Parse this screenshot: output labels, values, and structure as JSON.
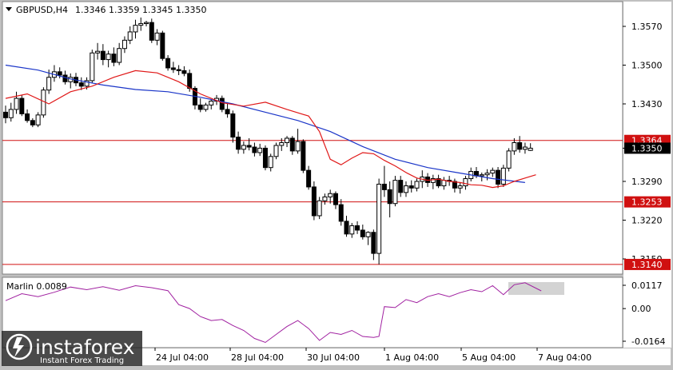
{
  "chart_data": {
    "type": "candlestick",
    "symbol": "GBPUSD,H4",
    "ohlc_header": "1.3346 1.3359 1.3345 1.3350",
    "price_axis": {
      "ticks": [
        "1.3570",
        "1.3500",
        "1.3430",
        "1.3350",
        "1.3290",
        "1.3220",
        "1.3150"
      ],
      "range": [
        1.3125,
        1.3605
      ]
    },
    "current_price": "1.3350",
    "levels": [
      {
        "value": 1.3364,
        "label": "1.3364"
      },
      {
        "value": 1.3253,
        "label": "1.3253"
      },
      {
        "value": 1.314,
        "label": "1.3140"
      }
    ],
    "time_axis": [
      "24 Jul 04:00",
      "28 Jul 04:00",
      "30 Jul 04:00",
      "1 Aug 04:00",
      "5 Aug 04:00",
      "7 Aug 04:00"
    ],
    "candles": [
      [
        1.3415,
        1.3427,
        1.3395,
        1.3405
      ],
      [
        1.3405,
        1.3432,
        1.3398,
        1.342
      ],
      [
        1.342,
        1.3452,
        1.3412,
        1.344
      ],
      [
        1.344,
        1.3446,
        1.3408,
        1.3412
      ],
      [
        1.3412,
        1.342,
        1.3396,
        1.34
      ],
      [
        1.34,
        1.3404,
        1.3388,
        1.3392
      ],
      [
        1.3392,
        1.3415,
        1.3388,
        1.341
      ],
      [
        1.341,
        1.346,
        1.3405,
        1.3455
      ],
      [
        1.3455,
        1.3492,
        1.3448,
        1.3478
      ],
      [
        1.3478,
        1.35,
        1.347,
        1.3488
      ],
      [
        1.3488,
        1.3496,
        1.3476,
        1.3482
      ],
      [
        1.3482,
        1.349,
        1.3465,
        1.347
      ],
      [
        1.347,
        1.3485,
        1.3458,
        1.3478
      ],
      [
        1.3478,
        1.3486,
        1.3462,
        1.3468
      ],
      [
        1.3468,
        1.3478,
        1.3455,
        1.3462
      ],
      [
        1.3462,
        1.3478,
        1.3456,
        1.3472
      ],
      [
        1.3472,
        1.3528,
        1.3468,
        1.3522
      ],
      [
        1.3522,
        1.354,
        1.351,
        1.3525
      ],
      [
        1.3525,
        1.3538,
        1.35,
        1.351
      ],
      [
        1.351,
        1.3526,
        1.3496,
        1.352
      ],
      [
        1.352,
        1.3532,
        1.3498,
        1.3505
      ],
      [
        1.3505,
        1.354,
        1.35,
        1.353
      ],
      [
        1.353,
        1.3552,
        1.3522,
        1.3545
      ],
      [
        1.3545,
        1.357,
        1.3538,
        1.356
      ],
      [
        1.356,
        1.3582,
        1.3548,
        1.3572
      ],
      [
        1.3572,
        1.3586,
        1.3562,
        1.3575
      ],
      [
        1.3575,
        1.358,
        1.357,
        1.3577
      ],
      [
        1.3577,
        1.3584,
        1.354,
        1.3545
      ],
      [
        1.3545,
        1.3565,
        1.3536,
        1.3558
      ],
      [
        1.3558,
        1.3562,
        1.3508,
        1.3512
      ],
      [
        1.3512,
        1.3518,
        1.349,
        1.3495
      ],
      [
        1.3495,
        1.3506,
        1.3486,
        1.3492
      ],
      [
        1.3492,
        1.35,
        1.3482,
        1.349
      ],
      [
        1.349,
        1.3498,
        1.348,
        1.3485
      ],
      [
        1.3485,
        1.3492,
        1.3452,
        1.3458
      ],
      [
        1.3458,
        1.3462,
        1.342,
        1.3428
      ],
      [
        1.3428,
        1.344,
        1.3415,
        1.342
      ],
      [
        1.342,
        1.3432,
        1.3416,
        1.3428
      ],
      [
        1.3428,
        1.3438,
        1.342,
        1.3435
      ],
      [
        1.3435,
        1.3446,
        1.3428,
        1.344
      ],
      [
        1.344,
        1.3445,
        1.3415,
        1.342
      ],
      [
        1.342,
        1.343,
        1.3405,
        1.3412
      ],
      [
        1.3412,
        1.3418,
        1.336,
        1.337
      ],
      [
        1.337,
        1.338,
        1.334,
        1.3348
      ],
      [
        1.3348,
        1.3362,
        1.334,
        1.3355
      ],
      [
        1.3355,
        1.3368,
        1.3346,
        1.3352
      ],
      [
        1.3352,
        1.336,
        1.3335,
        1.3342
      ],
      [
        1.3342,
        1.3358,
        1.3336,
        1.335
      ],
      [
        1.335,
        1.3355,
        1.331,
        1.3315
      ],
      [
        1.3315,
        1.334,
        1.3308,
        1.3335
      ],
      [
        1.3335,
        1.336,
        1.333,
        1.3355
      ],
      [
        1.3355,
        1.3368,
        1.3345,
        1.336
      ],
      [
        1.336,
        1.3372,
        1.3352,
        1.3368
      ],
      [
        1.3368,
        1.3372,
        1.3338,
        1.3345
      ],
      [
        1.3345,
        1.3385,
        1.334,
        1.3362
      ],
      [
        1.3362,
        1.3366,
        1.3305,
        1.331
      ],
      [
        1.331,
        1.3318,
        1.3275,
        1.328
      ],
      [
        1.328,
        1.329,
        1.322,
        1.3228
      ],
      [
        1.3228,
        1.3262,
        1.3222,
        1.3255
      ],
      [
        1.3255,
        1.3268,
        1.3248,
        1.3262
      ],
      [
        1.3262,
        1.3275,
        1.325,
        1.3268
      ],
      [
        1.3268,
        1.3272,
        1.324,
        1.3248
      ],
      [
        1.3248,
        1.3258,
        1.321,
        1.3218
      ],
      [
        1.3218,
        1.3228,
        1.319,
        1.3195
      ],
      [
        1.3195,
        1.3215,
        1.3188,
        1.321
      ],
      [
        1.321,
        1.3218,
        1.3195,
        1.3202
      ],
      [
        1.3202,
        1.3212,
        1.3185,
        1.319
      ],
      [
        1.319,
        1.32,
        1.3175,
        1.3198
      ],
      [
        1.3198,
        1.3203,
        1.3148,
        1.316
      ],
      [
        1.316,
        1.3295,
        1.314,
        1.3285
      ],
      [
        1.3285,
        1.3318,
        1.3262,
        1.3275
      ],
      [
        1.3275,
        1.329,
        1.3225,
        1.325
      ],
      [
        1.325,
        1.33,
        1.3245,
        1.3292
      ],
      [
        1.3292,
        1.33,
        1.3262,
        1.327
      ],
      [
        1.327,
        1.329,
        1.3262,
        1.3282
      ],
      [
        1.3282,
        1.3292,
        1.327,
        1.3278
      ],
      [
        1.3278,
        1.3295,
        1.3272,
        1.329
      ],
      [
        1.329,
        1.331,
        1.3278,
        1.3298
      ],
      [
        1.3298,
        1.3305,
        1.328,
        1.3288
      ],
      [
        1.3288,
        1.3302,
        1.3276,
        1.3295
      ],
      [
        1.3295,
        1.3302,
        1.3278,
        1.3282
      ],
      [
        1.3282,
        1.3298,
        1.3275,
        1.3292
      ],
      [
        1.3292,
        1.33,
        1.3282,
        1.329
      ],
      [
        1.329,
        1.3295,
        1.327,
        1.3278
      ],
      [
        1.3278,
        1.3288,
        1.3268,
        1.3282
      ],
      [
        1.3282,
        1.33,
        1.3275,
        1.3295
      ],
      [
        1.3295,
        1.3315,
        1.329,
        1.3308
      ],
      [
        1.3308,
        1.3316,
        1.3296,
        1.33
      ],
      [
        1.33,
        1.3306,
        1.329,
        1.3302
      ],
      [
        1.3302,
        1.3312,
        1.3292,
        1.3305
      ],
      [
        1.3305,
        1.3315,
        1.3298,
        1.331
      ],
      [
        1.331,
        1.3316,
        1.3278,
        1.3285
      ],
      [
        1.3285,
        1.332,
        1.328,
        1.3314
      ],
      [
        1.3314,
        1.335,
        1.3308,
        1.3345
      ],
      [
        1.3345,
        1.3368,
        1.3338,
        1.336
      ],
      [
        1.336,
        1.3372,
        1.3342,
        1.3348
      ],
      [
        1.3348,
        1.336,
        1.334,
        1.3352
      ],
      [
        1.3346,
        1.3359,
        1.3345,
        1.335
      ]
    ],
    "ma_blue": [
      [
        0,
        1.35
      ],
      [
        6,
        1.3491
      ],
      [
        12,
        1.3475
      ],
      [
        18,
        1.3464
      ],
      [
        24,
        1.3456
      ],
      [
        30,
        1.3452
      ],
      [
        36,
        1.3442
      ],
      [
        42,
        1.343
      ],
      [
        48,
        1.3415
      ],
      [
        54,
        1.34
      ],
      [
        60,
        1.338
      ],
      [
        66,
        1.3353
      ],
      [
        72,
        1.333
      ],
      [
        78,
        1.3315
      ],
      [
        84,
        1.3305
      ],
      [
        90,
        1.3295
      ],
      [
        96,
        1.3288
      ]
    ],
    "ma_red": [
      [
        0,
        1.344
      ],
      [
        4,
        1.3448
      ],
      [
        8,
        1.343
      ],
      [
        12,
        1.3452
      ],
      [
        16,
        1.3462
      ],
      [
        20,
        1.3478
      ],
      [
        24,
        1.349
      ],
      [
        28,
        1.3486
      ],
      [
        32,
        1.347
      ],
      [
        36,
        1.3448
      ],
      [
        40,
        1.3432
      ],
      [
        44,
        1.3426
      ],
      [
        48,
        1.3433
      ],
      [
        52,
        1.342
      ],
      [
        56,
        1.3408
      ],
      [
        58,
        1.338
      ],
      [
        60,
        1.333
      ],
      [
        62,
        1.332
      ],
      [
        64,
        1.3332
      ],
      [
        66,
        1.3342
      ],
      [
        68,
        1.334
      ],
      [
        70,
        1.3328
      ],
      [
        72,
        1.3318
      ],
      [
        74,
        1.3306
      ],
      [
        76,
        1.3296
      ],
      [
        78,
        1.3292
      ],
      [
        80,
        1.3294
      ],
      [
        82,
        1.329
      ],
      [
        84,
        1.3288
      ],
      [
        86,
        1.3284
      ],
      [
        88,
        1.3283
      ],
      [
        90,
        1.3279
      ],
      [
        92,
        1.3282
      ],
      [
        94,
        1.329
      ],
      [
        96,
        1.3296
      ],
      [
        98,
        1.3302
      ]
    ],
    "indicator": {
      "name": "Marlin",
      "value_label": "Marlin 0.0089",
      "ticks": [
        "0.0117",
        "0.00",
        "-0.0164"
      ],
      "range": [
        -0.018,
        0.014
      ],
      "values": [
        [
          0,
          0.004
        ],
        [
          3,
          0.0075
        ],
        [
          6,
          0.006
        ],
        [
          9,
          0.0082
        ],
        [
          12,
          0.0108
        ],
        [
          15,
          0.0095
        ],
        [
          18,
          0.011
        ],
        [
          21,
          0.0092
        ],
        [
          24,
          0.0115
        ],
        [
          27,
          0.0105
        ],
        [
          30,
          0.009
        ],
        [
          32,
          0.002
        ],
        [
          34,
          0.0
        ],
        [
          36,
          -0.004
        ],
        [
          38,
          -0.006
        ],
        [
          40,
          -0.0055
        ],
        [
          42,
          -0.0085
        ],
        [
          44,
          -0.011
        ],
        [
          46,
          -0.015
        ],
        [
          48,
          -0.017
        ],
        [
          50,
          -0.013
        ],
        [
          52,
          -0.009
        ],
        [
          54,
          -0.006
        ],
        [
          56,
          -0.01
        ],
        [
          58,
          -0.016
        ],
        [
          60,
          -0.012
        ],
        [
          62,
          -0.013
        ],
        [
          64,
          -0.011
        ],
        [
          66,
          -0.014
        ],
        [
          68,
          -0.0145
        ],
        [
          69,
          -0.014
        ],
        [
          70,
          0.001
        ],
        [
          72,
          0.0005
        ],
        [
          74,
          0.0045
        ],
        [
          76,
          0.003
        ],
        [
          78,
          0.006
        ],
        [
          80,
          0.0075
        ],
        [
          82,
          0.006
        ],
        [
          84,
          0.008
        ],
        [
          86,
          0.0095
        ],
        [
          88,
          0.0085
        ],
        [
          90,
          0.0115
        ],
        [
          92,
          0.007
        ],
        [
          94,
          0.012
        ],
        [
          96,
          0.013
        ],
        [
          99,
          0.0089
        ]
      ]
    },
    "colors": {
      "background": "#ffffff",
      "frame": "#c0c0c0",
      "ma_blue": "#1a35c8",
      "ma_red": "#e01818",
      "level_line": "#d01010",
      "indicator_line": "#a020a0"
    }
  },
  "watermark": {
    "brand": "instaforex",
    "tagline": "Instant Forex Trading"
  }
}
